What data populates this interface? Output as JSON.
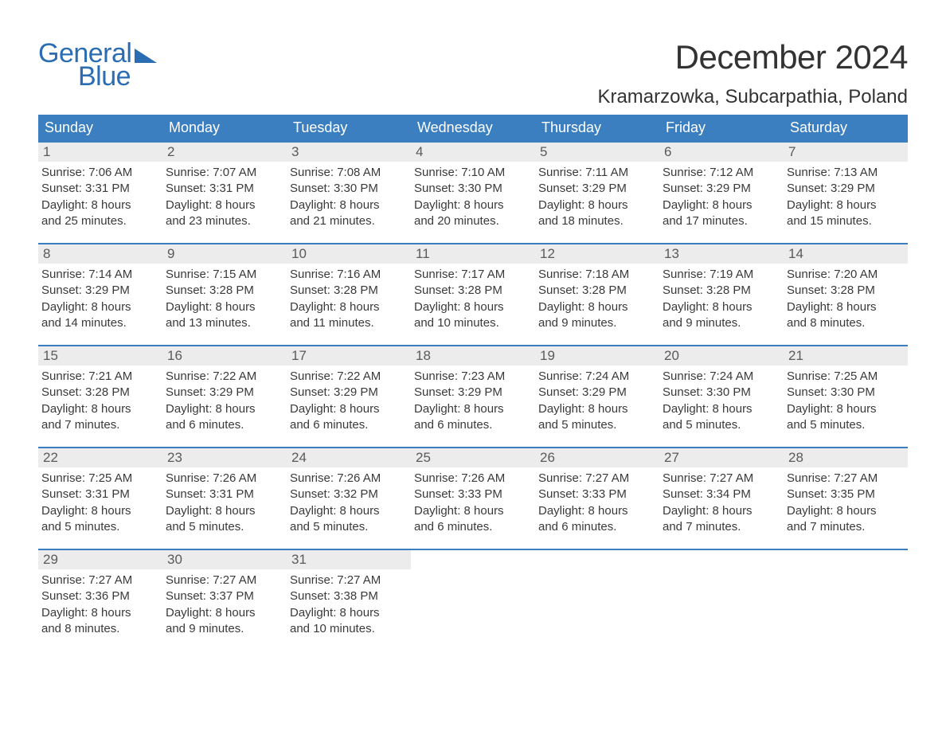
{
  "logo": {
    "text1": "General",
    "text2": "Blue",
    "color": "#2a6db2"
  },
  "title": {
    "month": "December 2024",
    "location": "Kramarzowka, Subcarpathia, Poland",
    "month_fontsize": 42,
    "location_fontsize": 24,
    "color": "#333333"
  },
  "colors": {
    "header_bg": "#3b7fc1",
    "header_text": "#ffffff",
    "daynum_bg": "#ececec",
    "daynum_text": "#5a5a5a",
    "body_text": "#3a3a3a",
    "row_border": "#3b7fc1",
    "background": "#ffffff"
  },
  "typography": {
    "day_header_fontsize": 18,
    "daynum_fontsize": 17,
    "body_fontsize": 15,
    "font_family": "Arial"
  },
  "layout": {
    "columns": 7,
    "rows": 5,
    "cell_min_height": 126
  },
  "day_headers": [
    "Sunday",
    "Monday",
    "Tuesday",
    "Wednesday",
    "Thursday",
    "Friday",
    "Saturday"
  ],
  "weeks": [
    [
      {
        "day": "1",
        "sunrise": "Sunrise: 7:06 AM",
        "sunset": "Sunset: 3:31 PM",
        "dl1": "Daylight: 8 hours",
        "dl2": "and 25 minutes."
      },
      {
        "day": "2",
        "sunrise": "Sunrise: 7:07 AM",
        "sunset": "Sunset: 3:31 PM",
        "dl1": "Daylight: 8 hours",
        "dl2": "and 23 minutes."
      },
      {
        "day": "3",
        "sunrise": "Sunrise: 7:08 AM",
        "sunset": "Sunset: 3:30 PM",
        "dl1": "Daylight: 8 hours",
        "dl2": "and 21 minutes."
      },
      {
        "day": "4",
        "sunrise": "Sunrise: 7:10 AM",
        "sunset": "Sunset: 3:30 PM",
        "dl1": "Daylight: 8 hours",
        "dl2": "and 20 minutes."
      },
      {
        "day": "5",
        "sunrise": "Sunrise: 7:11 AM",
        "sunset": "Sunset: 3:29 PM",
        "dl1": "Daylight: 8 hours",
        "dl2": "and 18 minutes."
      },
      {
        "day": "6",
        "sunrise": "Sunrise: 7:12 AM",
        "sunset": "Sunset: 3:29 PM",
        "dl1": "Daylight: 8 hours",
        "dl2": "and 17 minutes."
      },
      {
        "day": "7",
        "sunrise": "Sunrise: 7:13 AM",
        "sunset": "Sunset: 3:29 PM",
        "dl1": "Daylight: 8 hours",
        "dl2": "and 15 minutes."
      }
    ],
    [
      {
        "day": "8",
        "sunrise": "Sunrise: 7:14 AM",
        "sunset": "Sunset: 3:29 PM",
        "dl1": "Daylight: 8 hours",
        "dl2": "and 14 minutes."
      },
      {
        "day": "9",
        "sunrise": "Sunrise: 7:15 AM",
        "sunset": "Sunset: 3:28 PM",
        "dl1": "Daylight: 8 hours",
        "dl2": "and 13 minutes."
      },
      {
        "day": "10",
        "sunrise": "Sunrise: 7:16 AM",
        "sunset": "Sunset: 3:28 PM",
        "dl1": "Daylight: 8 hours",
        "dl2": "and 11 minutes."
      },
      {
        "day": "11",
        "sunrise": "Sunrise: 7:17 AM",
        "sunset": "Sunset: 3:28 PM",
        "dl1": "Daylight: 8 hours",
        "dl2": "and 10 minutes."
      },
      {
        "day": "12",
        "sunrise": "Sunrise: 7:18 AM",
        "sunset": "Sunset: 3:28 PM",
        "dl1": "Daylight: 8 hours",
        "dl2": "and 9 minutes."
      },
      {
        "day": "13",
        "sunrise": "Sunrise: 7:19 AM",
        "sunset": "Sunset: 3:28 PM",
        "dl1": "Daylight: 8 hours",
        "dl2": "and 9 minutes."
      },
      {
        "day": "14",
        "sunrise": "Sunrise: 7:20 AM",
        "sunset": "Sunset: 3:28 PM",
        "dl1": "Daylight: 8 hours",
        "dl2": "and 8 minutes."
      }
    ],
    [
      {
        "day": "15",
        "sunrise": "Sunrise: 7:21 AM",
        "sunset": "Sunset: 3:28 PM",
        "dl1": "Daylight: 8 hours",
        "dl2": "and 7 minutes."
      },
      {
        "day": "16",
        "sunrise": "Sunrise: 7:22 AM",
        "sunset": "Sunset: 3:29 PM",
        "dl1": "Daylight: 8 hours",
        "dl2": "and 6 minutes."
      },
      {
        "day": "17",
        "sunrise": "Sunrise: 7:22 AM",
        "sunset": "Sunset: 3:29 PM",
        "dl1": "Daylight: 8 hours",
        "dl2": "and 6 minutes."
      },
      {
        "day": "18",
        "sunrise": "Sunrise: 7:23 AM",
        "sunset": "Sunset: 3:29 PM",
        "dl1": "Daylight: 8 hours",
        "dl2": "and 6 minutes."
      },
      {
        "day": "19",
        "sunrise": "Sunrise: 7:24 AM",
        "sunset": "Sunset: 3:29 PM",
        "dl1": "Daylight: 8 hours",
        "dl2": "and 5 minutes."
      },
      {
        "day": "20",
        "sunrise": "Sunrise: 7:24 AM",
        "sunset": "Sunset: 3:30 PM",
        "dl1": "Daylight: 8 hours",
        "dl2": "and 5 minutes."
      },
      {
        "day": "21",
        "sunrise": "Sunrise: 7:25 AM",
        "sunset": "Sunset: 3:30 PM",
        "dl1": "Daylight: 8 hours",
        "dl2": "and 5 minutes."
      }
    ],
    [
      {
        "day": "22",
        "sunrise": "Sunrise: 7:25 AM",
        "sunset": "Sunset: 3:31 PM",
        "dl1": "Daylight: 8 hours",
        "dl2": "and 5 minutes."
      },
      {
        "day": "23",
        "sunrise": "Sunrise: 7:26 AM",
        "sunset": "Sunset: 3:31 PM",
        "dl1": "Daylight: 8 hours",
        "dl2": "and 5 minutes."
      },
      {
        "day": "24",
        "sunrise": "Sunrise: 7:26 AM",
        "sunset": "Sunset: 3:32 PM",
        "dl1": "Daylight: 8 hours",
        "dl2": "and 5 minutes."
      },
      {
        "day": "25",
        "sunrise": "Sunrise: 7:26 AM",
        "sunset": "Sunset: 3:33 PM",
        "dl1": "Daylight: 8 hours",
        "dl2": "and 6 minutes."
      },
      {
        "day": "26",
        "sunrise": "Sunrise: 7:27 AM",
        "sunset": "Sunset: 3:33 PM",
        "dl1": "Daylight: 8 hours",
        "dl2": "and 6 minutes."
      },
      {
        "day": "27",
        "sunrise": "Sunrise: 7:27 AM",
        "sunset": "Sunset: 3:34 PM",
        "dl1": "Daylight: 8 hours",
        "dl2": "and 7 minutes."
      },
      {
        "day": "28",
        "sunrise": "Sunrise: 7:27 AM",
        "sunset": "Sunset: 3:35 PM",
        "dl1": "Daylight: 8 hours",
        "dl2": "and 7 minutes."
      }
    ],
    [
      {
        "day": "29",
        "sunrise": "Sunrise: 7:27 AM",
        "sunset": "Sunset: 3:36 PM",
        "dl1": "Daylight: 8 hours",
        "dl2": "and 8 minutes."
      },
      {
        "day": "30",
        "sunrise": "Sunrise: 7:27 AM",
        "sunset": "Sunset: 3:37 PM",
        "dl1": "Daylight: 8 hours",
        "dl2": "and 9 minutes."
      },
      {
        "day": "31",
        "sunrise": "Sunrise: 7:27 AM",
        "sunset": "Sunset: 3:38 PM",
        "dl1": "Daylight: 8 hours",
        "dl2": "and 10 minutes."
      },
      null,
      null,
      null,
      null
    ]
  ]
}
